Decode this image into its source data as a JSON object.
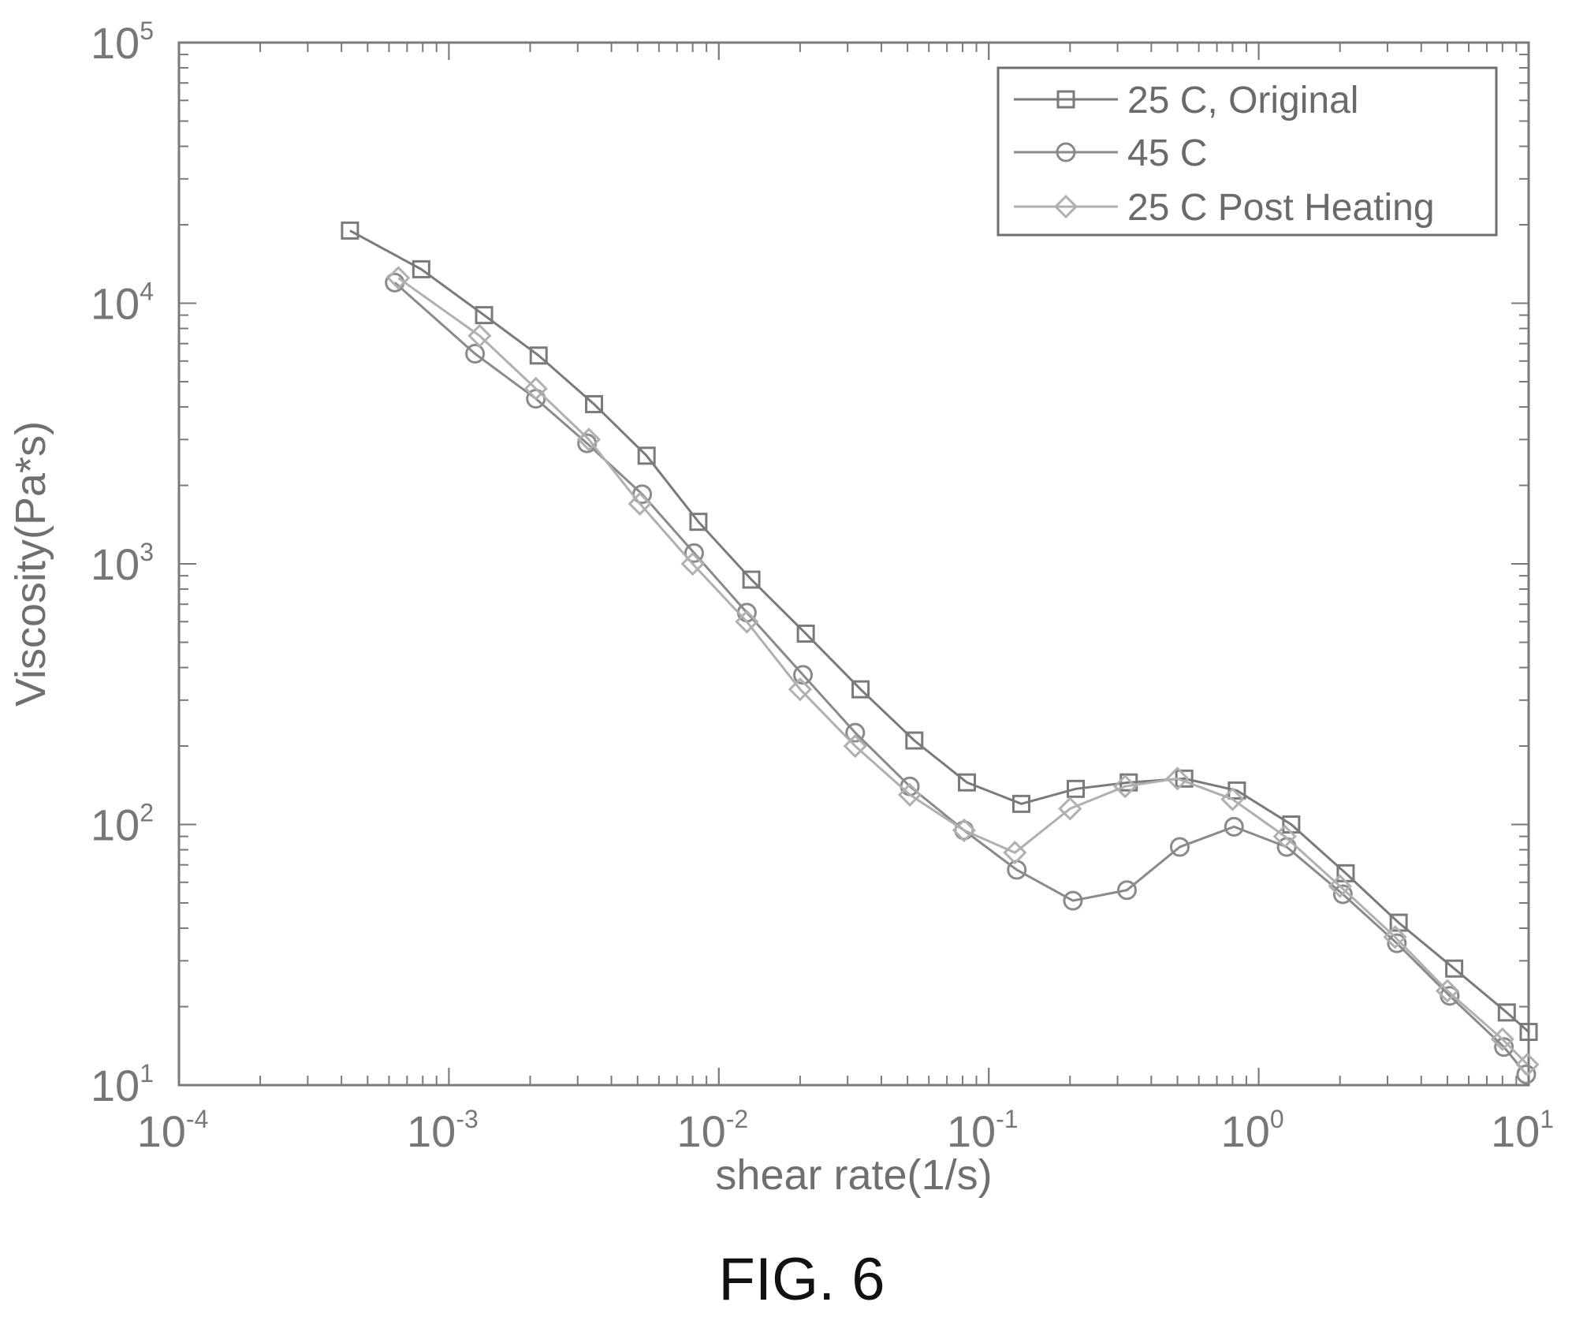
{
  "figure_caption": "FIG. 6",
  "chart_data": {
    "type": "line",
    "xlabel": "shear rate(1/s)",
    "ylabel": "Viscosity(Pa*s)",
    "x_scale": "log",
    "y_scale": "log",
    "xlim": [
      0.0001,
      10
    ],
    "ylim": [
      10,
      100000
    ],
    "x_ticks": [
      {
        "base": "10",
        "exp": "-4",
        "value": 0.0001
      },
      {
        "base": "10",
        "exp": "-3",
        "value": 0.001
      },
      {
        "base": "10",
        "exp": "-2",
        "value": 0.01
      },
      {
        "base": "10",
        "exp": "-1",
        "value": 0.1
      },
      {
        "base": "10",
        "exp": "0",
        "value": 1
      },
      {
        "base": "10",
        "exp": "1",
        "value": 10
      }
    ],
    "y_ticks": [
      {
        "base": "10",
        "exp": "1",
        "value": 10
      },
      {
        "base": "10",
        "exp": "2",
        "value": 100
      },
      {
        "base": "10",
        "exp": "3",
        "value": 1000
      },
      {
        "base": "10",
        "exp": "4",
        "value": 10000
      },
      {
        "base": "10",
        "exp": "5",
        "value": 100000
      }
    ],
    "grid": false,
    "legend_position": "top-right",
    "series": [
      {
        "name": "25 C, Original",
        "color": "#7a7a7a",
        "marker": "square",
        "points": [
          [
            0.00043,
            19000
          ],
          [
            0.00079,
            13500
          ],
          [
            0.00135,
            9000
          ],
          [
            0.00215,
            6300
          ],
          [
            0.00345,
            4100
          ],
          [
            0.0054,
            2600
          ],
          [
            0.0084,
            1450
          ],
          [
            0.0132,
            870
          ],
          [
            0.021,
            540
          ],
          [
            0.0335,
            330
          ],
          [
            0.053,
            210
          ],
          [
            0.083,
            145
          ],
          [
            0.132,
            120
          ],
          [
            0.21,
            137
          ],
          [
            0.33,
            145
          ],
          [
            0.53,
            150
          ],
          [
            0.83,
            135
          ],
          [
            1.32,
            100
          ],
          [
            2.1,
            65
          ],
          [
            3.3,
            42
          ],
          [
            5.3,
            28
          ],
          [
            8.3,
            19
          ],
          [
            10.0,
            16
          ]
        ]
      },
      {
        "name": "45 C",
        "color": "#8a8a8a",
        "marker": "circle",
        "points": [
          [
            0.00063,
            12000
          ],
          [
            0.00125,
            6400
          ],
          [
            0.0021,
            4300
          ],
          [
            0.00325,
            2900
          ],
          [
            0.0052,
            1850
          ],
          [
            0.0081,
            1100
          ],
          [
            0.0127,
            650
          ],
          [
            0.0205,
            375
          ],
          [
            0.032,
            225
          ],
          [
            0.051,
            140
          ],
          [
            0.081,
            95
          ],
          [
            0.127,
            67
          ],
          [
            0.205,
            51
          ],
          [
            0.325,
            56
          ],
          [
            0.51,
            82
          ],
          [
            0.81,
            98
          ],
          [
            1.27,
            82
          ],
          [
            2.05,
            54
          ],
          [
            3.25,
            35
          ],
          [
            5.1,
            22
          ],
          [
            8.1,
            14
          ],
          [
            9.8,
            11
          ]
        ]
      },
      {
        "name": "25 C Post Heating",
        "color": "#b0b0b0",
        "marker": "diamond",
        "points": [
          [
            0.00065,
            12500
          ],
          [
            0.0013,
            7500
          ],
          [
            0.0021,
            4700
          ],
          [
            0.0033,
            3000
          ],
          [
            0.0051,
            1700
          ],
          [
            0.008,
            1000
          ],
          [
            0.0127,
            600
          ],
          [
            0.02,
            330
          ],
          [
            0.032,
            200
          ],
          [
            0.051,
            130
          ],
          [
            0.081,
            95
          ],
          [
            0.125,
            78
          ],
          [
            0.2,
            115
          ],
          [
            0.32,
            140
          ],
          [
            0.5,
            150
          ],
          [
            0.8,
            125
          ],
          [
            1.25,
            90
          ],
          [
            2.0,
            58
          ],
          [
            3.2,
            37
          ],
          [
            5.0,
            23
          ],
          [
            8.0,
            15
          ],
          [
            9.9,
            12
          ]
        ]
      }
    ]
  }
}
